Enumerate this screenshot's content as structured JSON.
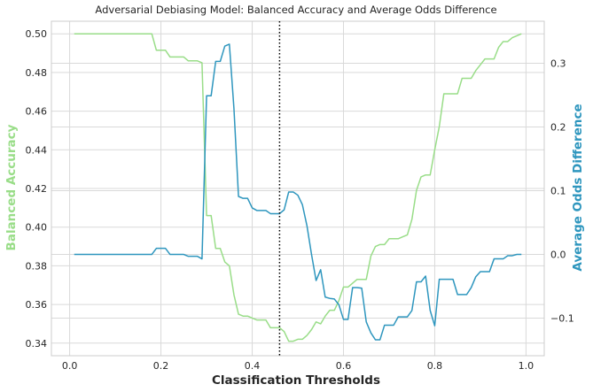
{
  "chart_data": {
    "type": "line",
    "title": "Adversarial Debiasing Model: Balanced Accuracy and Average Odds Difference",
    "xlabel": "Classification Thresholds",
    "ylabel_left": "Balanced Accuracy",
    "ylabel_right": "Average Odds Difference",
    "xlim": [
      -0.04,
      1.04
    ],
    "ylim_left": [
      0.3335,
      0.5065
    ],
    "ylim_right": [
      -0.159,
      0.366
    ],
    "x_ticks": [
      0.0,
      0.2,
      0.4,
      0.6,
      0.8,
      1.0
    ],
    "x_tick_labels": [
      "0.0",
      "0.2",
      "0.4",
      "0.6",
      "0.8",
      "1.0"
    ],
    "y_left_ticks": [
      0.34,
      0.36,
      0.38,
      0.4,
      0.42,
      0.44,
      0.46,
      0.48,
      0.5
    ],
    "y_left_tick_labels": [
      "0.34",
      "0.36",
      "0.38",
      "0.40",
      "0.42",
      "0.44",
      "0.46",
      "0.48",
      "0.50"
    ],
    "y_right_ticks": [
      -0.1,
      0.0,
      0.1,
      0.2,
      0.3
    ],
    "y_right_tick_labels": [
      "−0.1",
      "0.0",
      "0.1",
      "0.2",
      "0.3"
    ],
    "grid": true,
    "vline": {
      "x": 0.46,
      "style": "dotted",
      "color": "#000000"
    },
    "series": [
      {
        "axis": "left",
        "color": "#99dd88",
        "x": [
          0.01,
          0.02,
          0.03,
          0.04,
          0.05,
          0.06,
          0.07,
          0.08,
          0.09,
          0.1,
          0.11,
          0.12,
          0.13,
          0.14,
          0.15,
          0.16,
          0.17,
          0.18,
          0.19,
          0.2,
          0.21,
          0.22,
          0.23,
          0.24,
          0.25,
          0.26,
          0.27,
          0.28,
          0.29,
          0.3,
          0.31,
          0.32,
          0.33,
          0.34,
          0.35,
          0.36,
          0.37,
          0.38,
          0.39,
          0.4,
          0.41,
          0.42,
          0.43,
          0.44,
          0.45,
          0.46,
          0.47,
          0.48,
          0.49,
          0.5,
          0.51,
          0.52,
          0.53,
          0.54,
          0.55,
          0.56,
          0.57,
          0.58,
          0.59,
          0.6,
          0.61,
          0.62,
          0.63,
          0.64,
          0.65,
          0.66,
          0.67,
          0.68,
          0.69,
          0.7,
          0.71,
          0.72,
          0.73,
          0.74,
          0.75,
          0.76,
          0.77,
          0.78,
          0.79,
          0.8,
          0.81,
          0.82,
          0.83,
          0.84,
          0.85,
          0.86,
          0.87,
          0.88,
          0.89,
          0.9,
          0.91,
          0.92,
          0.93,
          0.94,
          0.95,
          0.96,
          0.97,
          0.98,
          0.99
        ],
        "values": [
          0.5,
          0.5,
          0.5,
          0.5,
          0.5,
          0.5,
          0.5,
          0.5,
          0.5,
          0.5,
          0.5,
          0.5,
          0.5,
          0.5,
          0.5,
          0.5,
          0.5,
          0.5,
          0.4915,
          0.4915,
          0.4915,
          0.488,
          0.488,
          0.488,
          0.488,
          0.486,
          0.486,
          0.486,
          0.485,
          0.406,
          0.406,
          0.389,
          0.389,
          0.382,
          0.38,
          0.365,
          0.355,
          0.354,
          0.354,
          0.353,
          0.352,
          0.352,
          0.352,
          0.348,
          0.348,
          0.348,
          0.346,
          0.341,
          0.341,
          0.342,
          0.342,
          0.344,
          0.347,
          0.351,
          0.35,
          0.354,
          0.357,
          0.357,
          0.362,
          0.369,
          0.369,
          0.371,
          0.373,
          0.373,
          0.373,
          0.385,
          0.39,
          0.391,
          0.391,
          0.394,
          0.394,
          0.394,
          0.395,
          0.396,
          0.404,
          0.419,
          0.426,
          0.427,
          0.427,
          0.44,
          0.452,
          0.469,
          0.469,
          0.469,
          0.469,
          0.477,
          0.477,
          0.477,
          0.481,
          0.484,
          0.487,
          0.487,
          0.487,
          0.493,
          0.496,
          0.496,
          0.498,
          0.499,
          0.5
        ],
        "name": ""
      },
      {
        "axis": "right",
        "color": "#2e96be",
        "x": [
          0.01,
          0.02,
          0.03,
          0.04,
          0.05,
          0.06,
          0.07,
          0.08,
          0.09,
          0.1,
          0.11,
          0.12,
          0.13,
          0.14,
          0.15,
          0.16,
          0.17,
          0.18,
          0.19,
          0.2,
          0.21,
          0.22,
          0.23,
          0.24,
          0.25,
          0.26,
          0.27,
          0.28,
          0.29,
          0.3,
          0.31,
          0.32,
          0.33,
          0.34,
          0.35,
          0.36,
          0.37,
          0.38,
          0.39,
          0.4,
          0.41,
          0.42,
          0.43,
          0.44,
          0.45,
          0.46,
          0.47,
          0.48,
          0.49,
          0.5,
          0.51,
          0.52,
          0.53,
          0.54,
          0.55,
          0.56,
          0.57,
          0.58,
          0.59,
          0.6,
          0.61,
          0.62,
          0.63,
          0.64,
          0.65,
          0.66,
          0.67,
          0.68,
          0.69,
          0.7,
          0.71,
          0.72,
          0.73,
          0.74,
          0.75,
          0.76,
          0.77,
          0.78,
          0.79,
          0.8,
          0.81,
          0.82,
          0.83,
          0.84,
          0.85,
          0.86,
          0.87,
          0.88,
          0.89,
          0.9,
          0.91,
          0.92,
          0.93,
          0.94,
          0.95,
          0.96,
          0.97,
          0.98,
          0.99
        ],
        "values": [
          0.0,
          0.0,
          0.0,
          0.0,
          0.0,
          0.0,
          0.0,
          0.0,
          0.0,
          0.0,
          0.0,
          0.0,
          0.0,
          0.0,
          0.0,
          0.0,
          0.0,
          0.0,
          0.0095,
          0.0095,
          0.0095,
          0.0,
          0.0,
          0.0,
          0.0,
          -0.003,
          -0.003,
          -0.003,
          -0.007,
          0.249,
          0.249,
          0.303,
          0.303,
          0.327,
          0.33,
          0.229,
          0.091,
          0.088,
          0.088,
          0.073,
          0.069,
          0.069,
          0.069,
          0.064,
          0.064,
          0.064,
          0.07,
          0.098,
          0.098,
          0.093,
          0.078,
          0.045,
          0.0,
          -0.041,
          -0.024,
          -0.067,
          -0.069,
          -0.07,
          -0.079,
          -0.102,
          -0.102,
          -0.052,
          -0.052,
          -0.053,
          -0.106,
          -0.123,
          -0.134,
          -0.134,
          -0.111,
          -0.111,
          -0.111,
          -0.098,
          -0.098,
          -0.098,
          -0.088,
          -0.043,
          -0.043,
          -0.034,
          -0.088,
          -0.112,
          -0.039,
          -0.039,
          -0.039,
          -0.039,
          -0.063,
          -0.063,
          -0.063,
          -0.052,
          -0.035,
          -0.027,
          -0.027,
          -0.027,
          -0.007,
          -0.007,
          -0.007,
          -0.002,
          -0.002,
          0.0,
          0.0
        ],
        "name": ""
      }
    ]
  }
}
